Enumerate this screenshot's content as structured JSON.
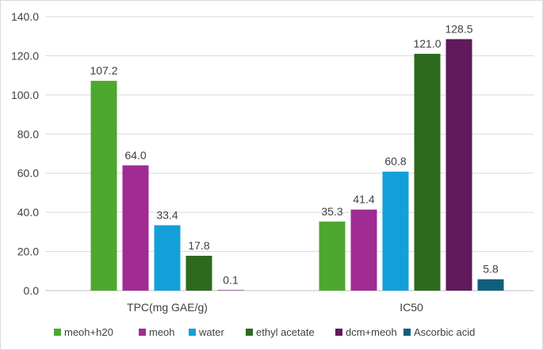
{
  "chart_data": {
    "type": "bar",
    "title": "",
    "xlabel": "",
    "ylabel": "",
    "ylim": [
      0,
      140
    ],
    "yticks": [
      "0.0",
      "20.0",
      "40.0",
      "60.0",
      "80.0",
      "100.0",
      "120.0",
      "140.0"
    ],
    "ytick_values": [
      0,
      20,
      40,
      60,
      80,
      100,
      120,
      140
    ],
    "grid": true,
    "legend_position": "bottom",
    "categories": [
      "TPC(mg GAE/g)",
      "IC50"
    ],
    "series": [
      {
        "name": "meoh+h20",
        "color": "#4ea72e",
        "values": [
          107.2,
          35.3
        ],
        "labels": [
          "107.2",
          "35.3"
        ]
      },
      {
        "name": "meoh",
        "color": "#a02b93",
        "values": [
          64.0,
          41.4
        ],
        "labels": [
          "64.0",
          "41.4"
        ]
      },
      {
        "name": "water",
        "color": "#13a0d9",
        "values": [
          33.4,
          60.8
        ],
        "labels": [
          "33.4",
          "60.8"
        ]
      },
      {
        "name": "ethyl acetate",
        "color": "#2d6a1e",
        "values": [
          17.8,
          121.0
        ],
        "labels": [
          "17.8",
          "121.0"
        ]
      },
      {
        "name": "dcm+meoh",
        "color": "#60195a",
        "values": [
          0.1,
          128.5
        ],
        "labels": [
          "0.1",
          "128.5"
        ]
      },
      {
        "name": "Ascorbic acid",
        "color": "#0f5f7c",
        "values": [
          null,
          5.8
        ],
        "labels": [
          "",
          "5.8"
        ]
      }
    ]
  }
}
